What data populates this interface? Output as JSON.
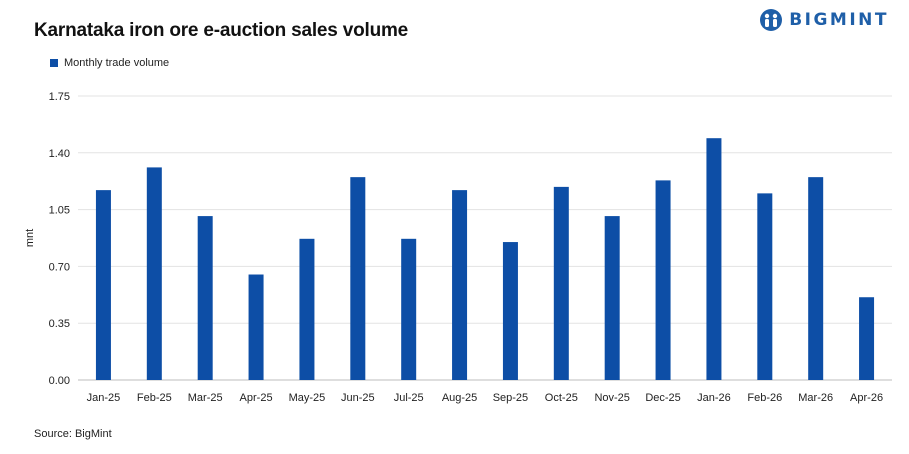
{
  "header": {
    "title": "Karnataka iron ore e-auction sales volume",
    "brand": "BIGMINT",
    "brand_logo_icon": "globe-people-icon"
  },
  "footer": {
    "source": "Source: BigMint"
  },
  "colors": {
    "bar": "#0d4ea6",
    "brand": "#1f5fa8",
    "grid": "#e3e3e3",
    "axis": "#bdbdbd"
  },
  "chart_data": {
    "type": "bar",
    "title": "Karnataka iron ore e-auction sales volume",
    "ylabel": "mnt",
    "xlabel": "",
    "categories": [
      "Jan-25",
      "Feb-25",
      "Mar-25",
      "Apr-25",
      "May-25",
      "Jun-25",
      "Jul-25",
      "Aug-25",
      "Sep-25",
      "Oct-25",
      "Nov-25",
      "Dec-25",
      "Jan-26",
      "Feb-26",
      "Mar-26",
      "Apr-26"
    ],
    "series": [
      {
        "name": "Monthly trade volume",
        "values": [
          1.17,
          1.31,
          1.01,
          0.65,
          0.87,
          1.25,
          0.87,
          1.17,
          0.85,
          1.19,
          1.01,
          1.23,
          1.49,
          1.15,
          1.25,
          0.51
        ]
      }
    ],
    "ylim": [
      0,
      1.75
    ],
    "yticks": [
      "0.00",
      "0.35",
      "0.70",
      "1.05",
      "1.40",
      "1.75"
    ],
    "grid": true,
    "legend": "top-left"
  }
}
